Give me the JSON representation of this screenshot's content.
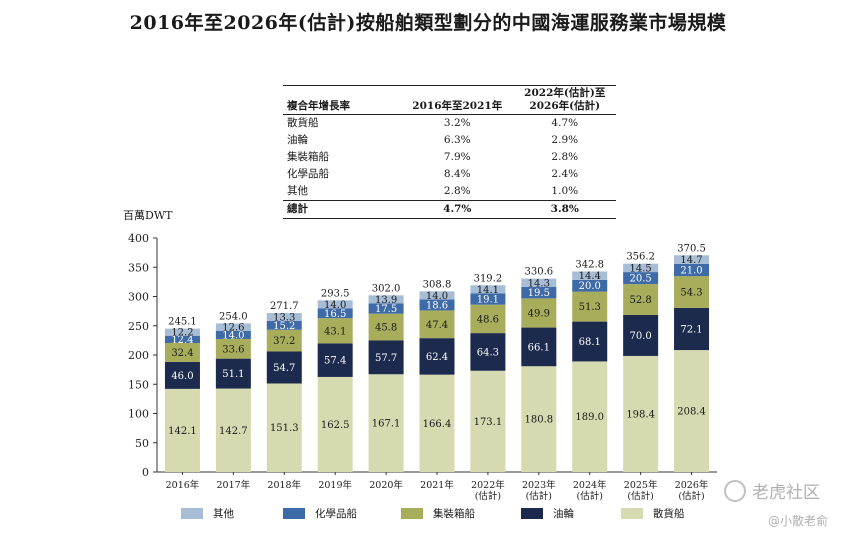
{
  "title": "2016年至2026年(估計)按船舶類型劃分的中國海運服務業市場規模",
  "cagr_table": {
    "header": [
      "複合年增長率",
      "2016年至2021年",
      "2022年(估計)至",
      "2026年(估計)"
    ],
    "rows": [
      {
        "label": "散貨船",
        "a": "3.2%",
        "b": "4.7%"
      },
      {
        "label": "油輪",
        "a": "6.3%",
        "b": "2.9%"
      },
      {
        "label": "集裝箱船",
        "a": "7.9%",
        "b": "2.8%"
      },
      {
        "label": "化學品船",
        "a": "8.4%",
        "b": "2.4%"
      },
      {
        "label": "其他",
        "a": "2.8%",
        "b": "1.0%"
      }
    ],
    "total": {
      "label": "總計",
      "a": "4.7%",
      "b": "3.8%"
    }
  },
  "unit_label": "百萬DWT",
  "watermark": {
    "brand": "老虎社区",
    "handle": "@小散老俞"
  },
  "chart_data": {
    "type": "bar",
    "stacked": true,
    "title": "2016年至2026年(估計)按船舶類型劃分的中國海運服務業市場規模",
    "ylabel": "百萬DWT",
    "ylim": [
      0,
      400
    ],
    "yticks": [
      "0",
      "50",
      "100",
      "150",
      "200",
      "250",
      "300",
      "350",
      "400"
    ],
    "categories": [
      [
        "2016年"
      ],
      [
        "2017年"
      ],
      [
        "2018年"
      ],
      [
        "2019年"
      ],
      [
        "2020年"
      ],
      [
        "2021年"
      ],
      [
        "2022年",
        "(估計)"
      ],
      [
        "2023年",
        "(估計)"
      ],
      [
        "2024年",
        "(估計)"
      ],
      [
        "2025年",
        "(估計)"
      ],
      [
        "2026年",
        "(估計)"
      ]
    ],
    "series": [
      {
        "name": "散貨船",
        "color": "#d6dab0",
        "values": [
          142.1,
          142.7,
          151.3,
          162.5,
          167.1,
          166.4,
          173.1,
          180.8,
          189.0,
          198.4,
          208.4
        ]
      },
      {
        "name": "油輪",
        "color": "#1c2a4e",
        "values": [
          46.0,
          51.1,
          54.7,
          57.4,
          57.7,
          62.4,
          64.3,
          66.1,
          68.1,
          70.0,
          72.1
        ]
      },
      {
        "name": "集裝箱船",
        "color": "#a7ad5b",
        "values": [
          32.4,
          33.6,
          37.2,
          43.1,
          45.8,
          47.4,
          48.6,
          49.9,
          51.3,
          52.8,
          54.3
        ]
      },
      {
        "name": "化學品船",
        "color": "#3e6aa8",
        "values": [
          12.4,
          14.0,
          15.2,
          16.5,
          17.5,
          18.6,
          19.1,
          19.5,
          20.0,
          20.5,
          21.0
        ]
      },
      {
        "name": "其他",
        "color": "#a7bcd5",
        "values": [
          12.2,
          12.6,
          13.3,
          14.0,
          13.9,
          14.0,
          14.1,
          14.3,
          14.4,
          14.5,
          14.7
        ]
      }
    ],
    "totals": [
      245.1,
      254.0,
      271.7,
      293.5,
      302.0,
      308.8,
      319.2,
      330.6,
      342.8,
      356.2,
      370.5
    ],
    "legend": [
      {
        "name": "其他",
        "color": "#a7bcd5"
      },
      {
        "name": "化學品船",
        "color": "#3e6aa8"
      },
      {
        "name": "集裝箱船",
        "color": "#a7ad5b"
      },
      {
        "name": "油輪",
        "color": "#1c2a4e"
      },
      {
        "name": "散貨船",
        "color": "#d6dab0"
      }
    ]
  }
}
